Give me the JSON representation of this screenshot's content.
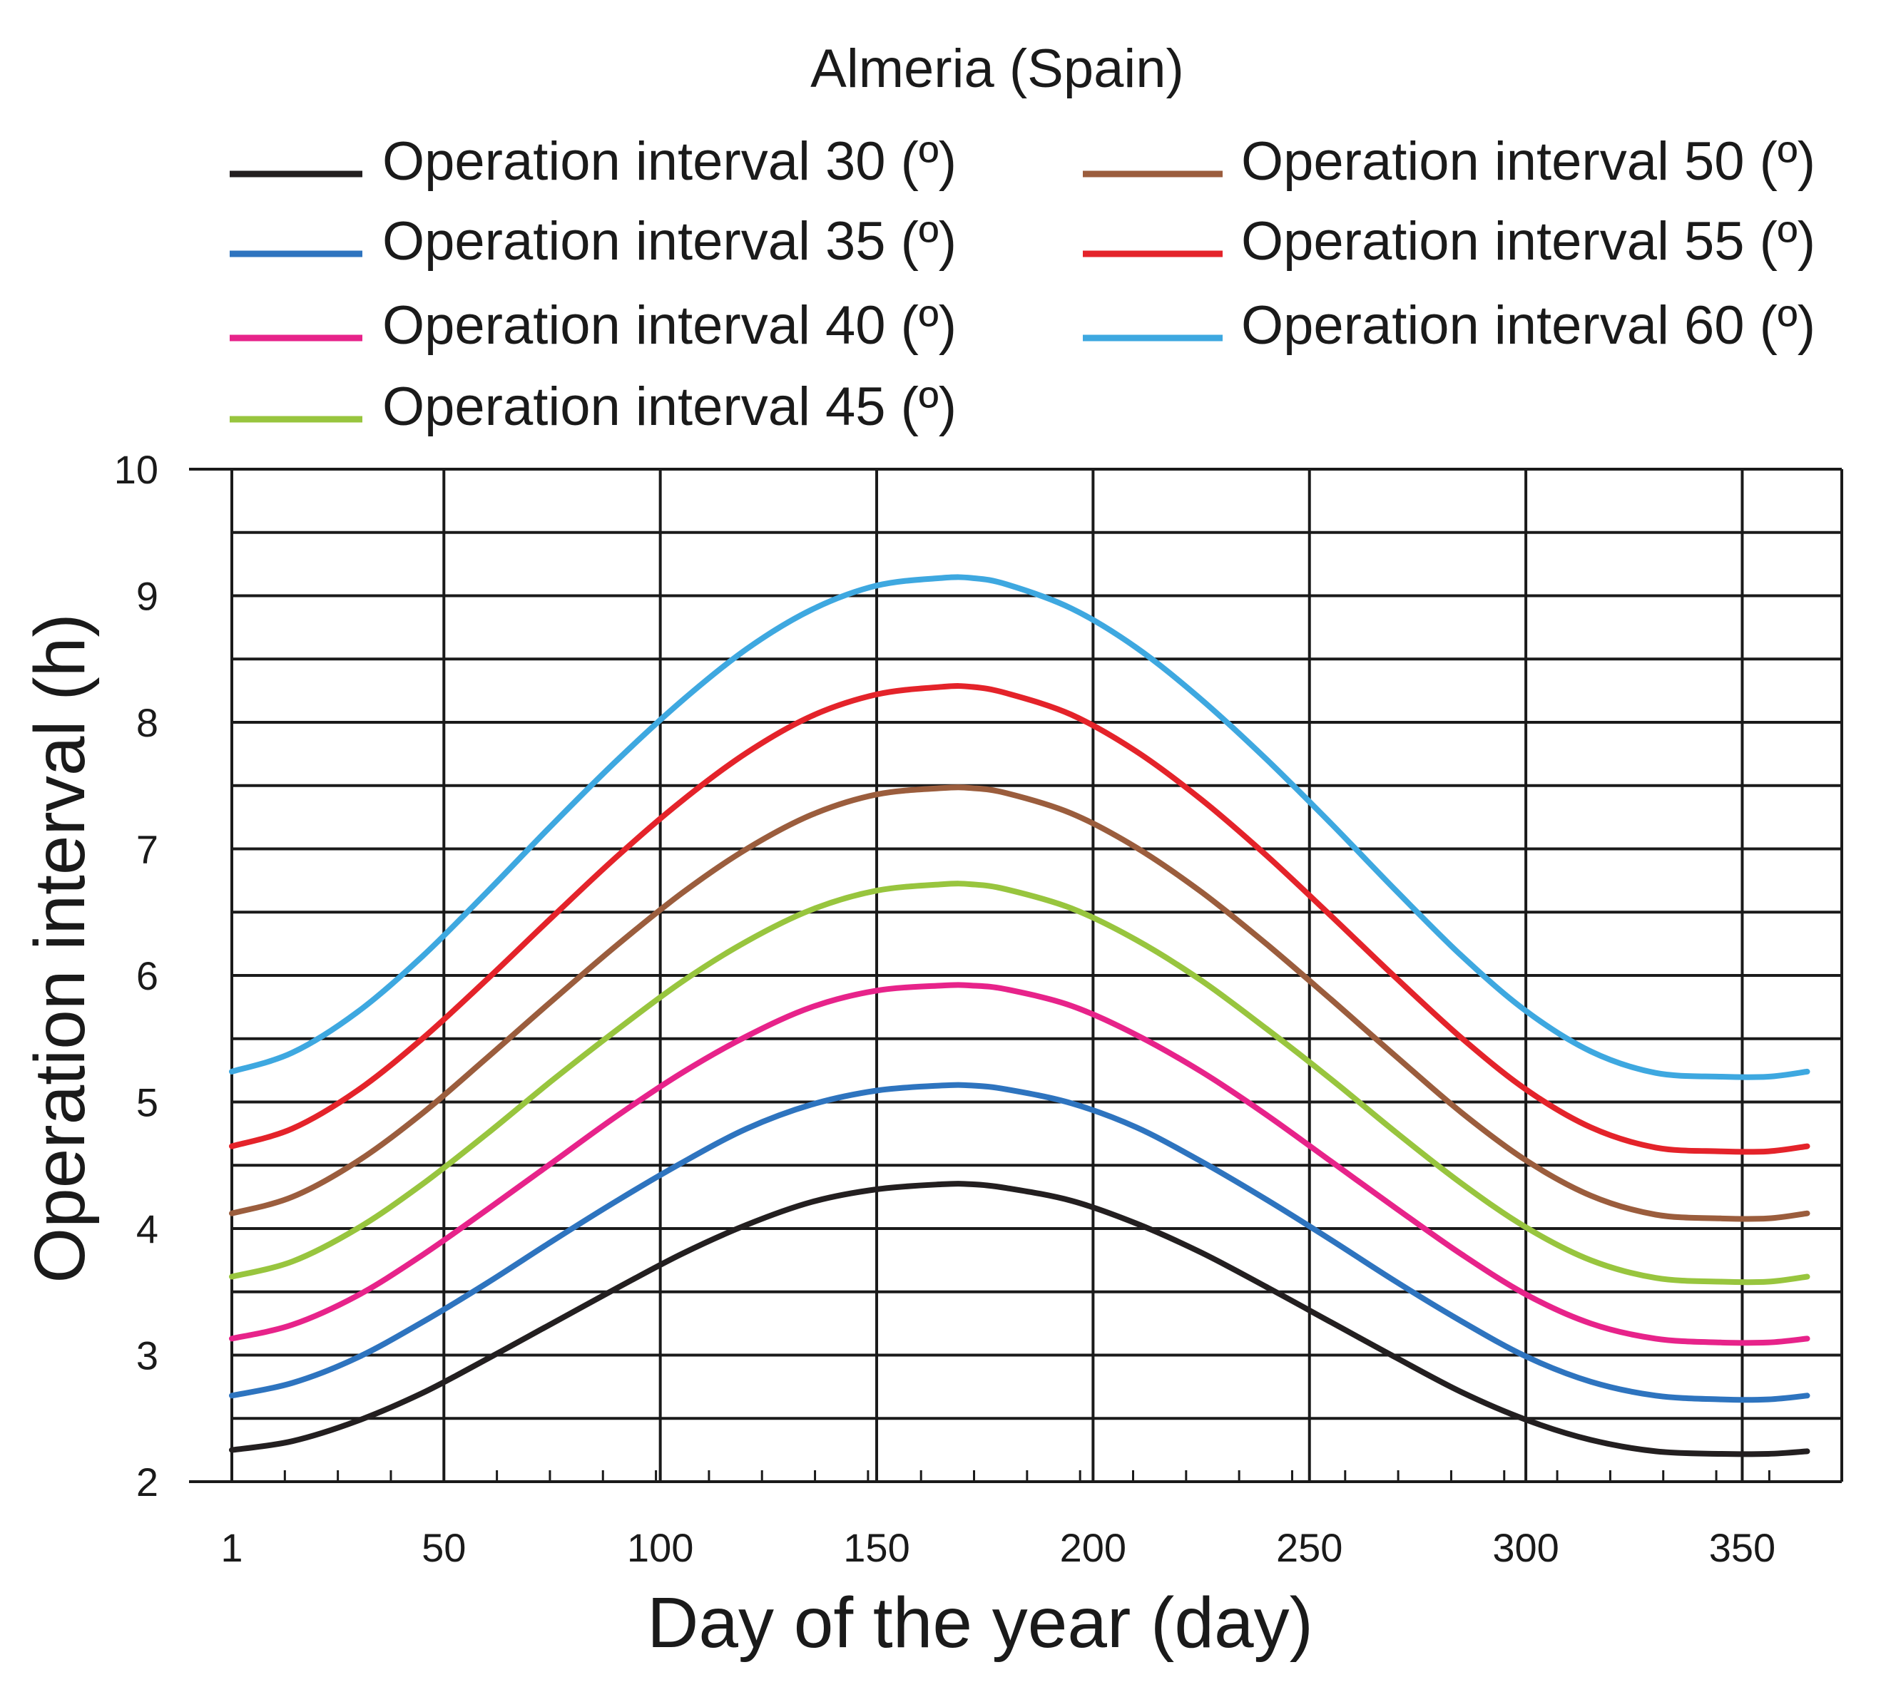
{
  "chart_data": {
    "type": "line",
    "title": "Almeria (Spain)",
    "xlabel": "Day of the year (day)",
    "ylabel": "Operation interval (h)",
    "xlim": [
      1,
      373
    ],
    "ylim": [
      2,
      10
    ],
    "x_ticks": [
      1,
      50,
      100,
      150,
      200,
      250,
      300,
      350
    ],
    "y_ticks": [
      2,
      3,
      4,
      5,
      6,
      7,
      8,
      9,
      10
    ],
    "grid": true,
    "legend_position": "top",
    "x": [
      1,
      15,
      30,
      45,
      60,
      75,
      90,
      105,
      120,
      135,
      150,
      165,
      172,
      180,
      195,
      210,
      225,
      240,
      255,
      270,
      285,
      300,
      315,
      330,
      345,
      356,
      365
    ],
    "series": [
      {
        "name": "Operation interval 30 (º)",
        "color": "#231f20",
        "values": [
          2.25,
          2.32,
          2.48,
          2.7,
          2.97,
          3.25,
          3.53,
          3.8,
          4.03,
          4.21,
          4.31,
          4.35,
          4.35,
          4.32,
          4.22,
          4.04,
          3.81,
          3.54,
          3.26,
          2.98,
          2.71,
          2.49,
          2.33,
          2.24,
          2.22,
          2.22,
          2.24
        ]
      },
      {
        "name": "Operation interval 35 (º)",
        "color": "#2e74bf",
        "values": [
          2.68,
          2.78,
          2.98,
          3.26,
          3.57,
          3.9,
          4.22,
          4.52,
          4.79,
          4.98,
          5.09,
          5.13,
          5.13,
          5.1,
          4.99,
          4.8,
          4.53,
          4.23,
          3.91,
          3.58,
          3.27,
          2.99,
          2.79,
          2.68,
          2.65,
          2.65,
          2.68
        ]
      },
      {
        "name": "Operation interval 40 (º)",
        "color": "#e7238a",
        "values": [
          3.13,
          3.24,
          3.47,
          3.79,
          4.15,
          4.52,
          4.89,
          5.23,
          5.52,
          5.75,
          5.88,
          5.92,
          5.92,
          5.89,
          5.76,
          5.53,
          5.24,
          4.9,
          4.53,
          4.16,
          3.8,
          3.48,
          3.25,
          3.13,
          3.1,
          3.1,
          3.13
        ]
      },
      {
        "name": "Operation interval 45 (º)",
        "color": "#98c53e",
        "values": [
          3.62,
          3.74,
          4.0,
          4.35,
          4.75,
          5.17,
          5.57,
          5.95,
          6.27,
          6.52,
          6.67,
          6.72,
          6.72,
          6.68,
          6.53,
          6.28,
          5.96,
          5.58,
          5.18,
          4.76,
          4.36,
          4.01,
          3.75,
          3.61,
          3.58,
          3.58,
          3.62
        ]
      },
      {
        "name": "Operation interval 50 (º)",
        "color": "#9b5d3d",
        "values": [
          4.12,
          4.25,
          4.53,
          4.91,
          5.35,
          5.8,
          6.24,
          6.65,
          7.0,
          7.27,
          7.43,
          7.48,
          7.48,
          7.44,
          7.28,
          7.01,
          6.66,
          6.25,
          5.81,
          5.36,
          4.92,
          4.54,
          4.26,
          4.11,
          4.08,
          4.08,
          4.12
        ]
      },
      {
        "name": "Operation interval 55 (º)",
        "color": "#e4232a",
        "values": [
          4.65,
          4.79,
          5.09,
          5.5,
          5.97,
          6.46,
          6.94,
          7.38,
          7.76,
          8.05,
          8.22,
          8.28,
          8.28,
          8.23,
          8.06,
          7.77,
          7.39,
          6.95,
          6.47,
          5.98,
          5.51,
          5.1,
          4.8,
          4.64,
          4.61,
          4.61,
          4.65
        ]
      },
      {
        "name": "Operation interval 60 (º)",
        "color": "#3ea8e0",
        "values": [
          5.24,
          5.39,
          5.71,
          6.15,
          6.66,
          7.19,
          7.7,
          8.17,
          8.58,
          8.89,
          9.08,
          9.14,
          9.14,
          9.09,
          8.9,
          8.59,
          8.18,
          7.71,
          7.2,
          6.67,
          6.16,
          5.72,
          5.4,
          5.23,
          5.2,
          5.2,
          5.24
        ]
      }
    ]
  }
}
